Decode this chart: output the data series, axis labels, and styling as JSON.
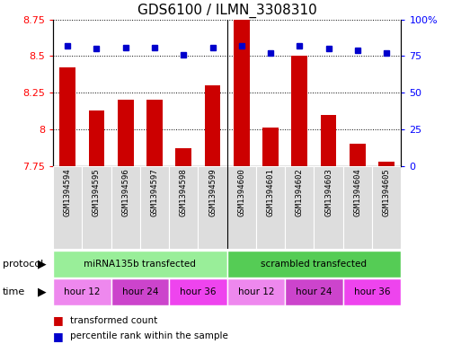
{
  "title": "GDS6100 / ILMN_3308310",
  "samples": [
    "GSM1394594",
    "GSM1394595",
    "GSM1394596",
    "GSM1394597",
    "GSM1394598",
    "GSM1394599",
    "GSM1394600",
    "GSM1394601",
    "GSM1394602",
    "GSM1394603",
    "GSM1394604",
    "GSM1394605"
  ],
  "bar_values": [
    8.42,
    8.13,
    8.2,
    8.2,
    7.87,
    8.3,
    8.88,
    8.01,
    8.5,
    8.1,
    7.9,
    7.78
  ],
  "dot_values": [
    82,
    80,
    81,
    81,
    76,
    81,
    82,
    77,
    82,
    80,
    79,
    77
  ],
  "ymin": 7.75,
  "ymax": 8.75,
  "yticks": [
    7.75,
    8.0,
    8.25,
    8.5,
    8.75
  ],
  "ytick_labels": [
    "7.75",
    "8",
    "8.25",
    "8.5",
    "8.75"
  ],
  "y2min": 0,
  "y2max": 100,
  "y2ticks": [
    0,
    25,
    50,
    75,
    100
  ],
  "y2tick_labels": [
    "0",
    "25",
    "50",
    "75",
    "100%"
  ],
  "bar_color": "#cc0000",
  "dot_color": "#0000cc",
  "bar_width": 0.55,
  "protocol_groups": [
    {
      "label": "miRNA135b transfected",
      "start": 0,
      "end": 6,
      "color": "#99ee99"
    },
    {
      "label": "scrambled transfected",
      "start": 6,
      "end": 12,
      "color": "#55cc55"
    }
  ],
  "time_groups": [
    {
      "label": "hour 12",
      "start": 0,
      "end": 2,
      "color": "#ee88ee"
    },
    {
      "label": "hour 24",
      "start": 2,
      "end": 4,
      "color": "#cc44cc"
    },
    {
      "label": "hour 36",
      "start": 4,
      "end": 6,
      "color": "#ee44ee"
    },
    {
      "label": "hour 12",
      "start": 6,
      "end": 8,
      "color": "#ee88ee"
    },
    {
      "label": "hour 24",
      "start": 8,
      "end": 10,
      "color": "#cc44cc"
    },
    {
      "label": "hour 36",
      "start": 10,
      "end": 12,
      "color": "#ee44ee"
    }
  ],
  "legend_items": [
    {
      "label": "transformed count",
      "color": "#cc0000"
    },
    {
      "label": "percentile rank within the sample",
      "color": "#0000cc"
    }
  ],
  "protocol_label": "protocol",
  "time_label": "time",
  "title_fontsize": 11,
  "tick_fontsize": 8,
  "bar_bottom": 7.75,
  "sample_bg_color": "#dddddd"
}
